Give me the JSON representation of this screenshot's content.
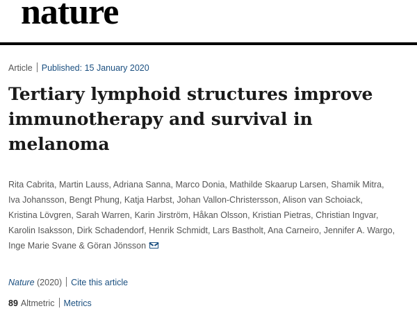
{
  "masthead": {
    "logo_text": "nature"
  },
  "article": {
    "type": "Article",
    "published": "Published: 15 January 2020",
    "title": "Tertiary lymphoid structures improve immunotherapy and survival in melanoma",
    "authors": [
      "Rita Cabrita",
      "Martin Lauss",
      "Adriana Sanna",
      "Marco Donia",
      "Mathilde Skaarup Larsen",
      "Shamik Mitra",
      "Iva Johansson",
      "Bengt Phung",
      "Katja Harbst",
      "Johan Vallon-Christersson",
      "Alison van Schoiack",
      "Kristina Lövgren",
      "Sarah Warren",
      "Karin Jirström",
      "Håkan Olsson",
      "Kristian Pietras",
      "Christian Ingvar",
      "Karolin Isaksson",
      "Dirk Schadendorf",
      "Henrik Schmidt",
      "Lars Bastholt",
      "Ana Carneiro",
      "Jennifer A. Wargo",
      "Inge Marie Svane",
      "Göran Jönsson"
    ],
    "final_author_joiner": "&",
    "journal": "Nature",
    "year": "(2020)",
    "cite_label": "Cite this article",
    "altmetric_count": "89",
    "altmetric_label": "Altmetric",
    "metrics_label": "Metrics"
  },
  "colors": {
    "link": "#1a4f80",
    "text_muted": "#555555",
    "title": "#1a1a1a"
  },
  "icons": {
    "mail": "envelope-icon"
  }
}
